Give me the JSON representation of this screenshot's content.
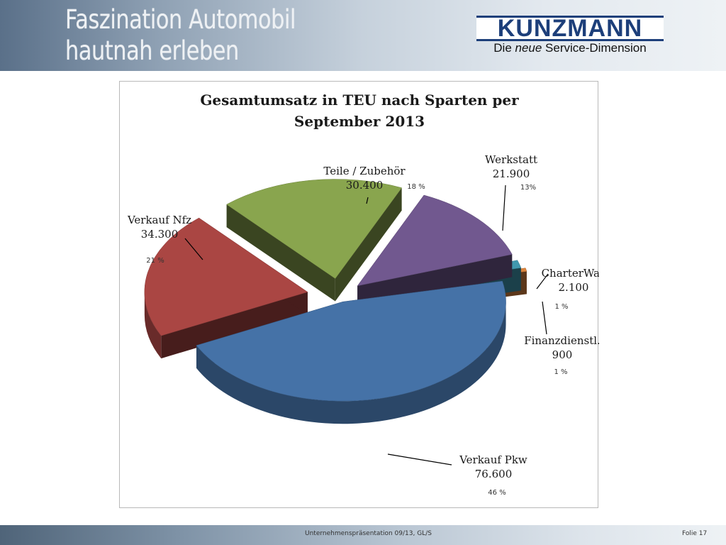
{
  "header": {
    "title_line1": "Faszination Automobil",
    "title_line2": "hautnah erleben"
  },
  "logo": {
    "brand": "KUNZMANN",
    "tagline_pre": "Die ",
    "tagline_em": "neue",
    "tagline_post": " Service-Dimension"
  },
  "chart_data": {
    "type": "pie",
    "title_line1": "Gesamtumsatz in TEU nach Sparten per",
    "title_line2": "September 2013",
    "slices": [
      {
        "label": "Verkauf Pkw",
        "value_text": "76.600",
        "value": 76600,
        "percent": "46 %",
        "color": "#4572a7"
      },
      {
        "label": "Verkauf Nfz",
        "value_text": "34.300",
        "value": 34300,
        "percent": "21 %",
        "color": "#aa4643"
      },
      {
        "label": "Teile / Zubehör",
        "value_text": "30.400",
        "value": 30400,
        "percent": "18 %",
        "color": "#89a54e"
      },
      {
        "label": "Werkstatt",
        "value_text": "21.900",
        "value": 21900,
        "percent": "13%",
        "color": "#71588f"
      },
      {
        "label": "CharterWay",
        "value_text": "2.100",
        "value": 2100,
        "percent": "1 %",
        "color": "#4198af"
      },
      {
        "label": "Finanzdienstl.",
        "value_text": "900",
        "value": 900,
        "percent": "1 %",
        "color": "#db843d"
      }
    ]
  },
  "footer": {
    "center_text": "Unternehmenspräsentation 09/13, GL/S",
    "page_label": "Folie 17"
  }
}
